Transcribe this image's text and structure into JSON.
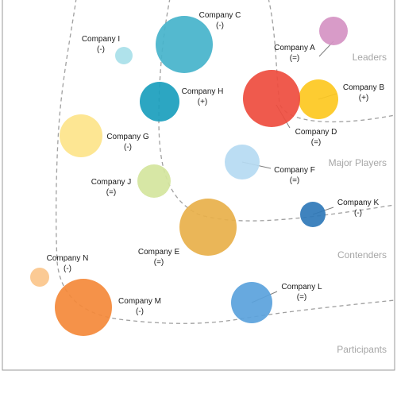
{
  "chart_data": {
    "type": "scatter",
    "title": "",
    "xlabel": "",
    "ylabel": "",
    "grid": false,
    "zones": [
      {
        "name": "Leaders"
      },
      {
        "name": "Major Players"
      },
      {
        "name": "Contenders"
      },
      {
        "name": "Participants"
      }
    ],
    "points": [
      {
        "name": "Company A",
        "change": "(=)",
        "color": "#d592c3"
      },
      {
        "name": "Company B",
        "change": "(+)",
        "color": "#fdc820"
      },
      {
        "name": "Company C",
        "change": "(-)",
        "color": "#45b3cb"
      },
      {
        "name": "Company D",
        "change": "(=)",
        "color": "#ee4c3e"
      },
      {
        "name": "Company E",
        "change": "(=)",
        "color": "#e8b04a"
      },
      {
        "name": "Company F",
        "change": "(=)",
        "color": "#b5daf2"
      },
      {
        "name": "Company G",
        "change": "(-)",
        "color": "#fde48a"
      },
      {
        "name": "Company H",
        "change": "(+)",
        "color": "#1a9ebd"
      },
      {
        "name": "Company I",
        "change": "(-)",
        "color": "#a8dfe9"
      },
      {
        "name": "Company J",
        "change": "(=)",
        "color": "#d4e59d"
      },
      {
        "name": "Company K",
        "change": "(-)",
        "color": "#2f78b9"
      },
      {
        "name": "Company L",
        "change": "(=)",
        "color": "#5aa2dc"
      },
      {
        "name": "Company M",
        "change": "(-)",
        "color": "#f4893a"
      },
      {
        "name": "Company N",
        "change": "(-)",
        "color": "#fbc58b"
      }
    ]
  }
}
